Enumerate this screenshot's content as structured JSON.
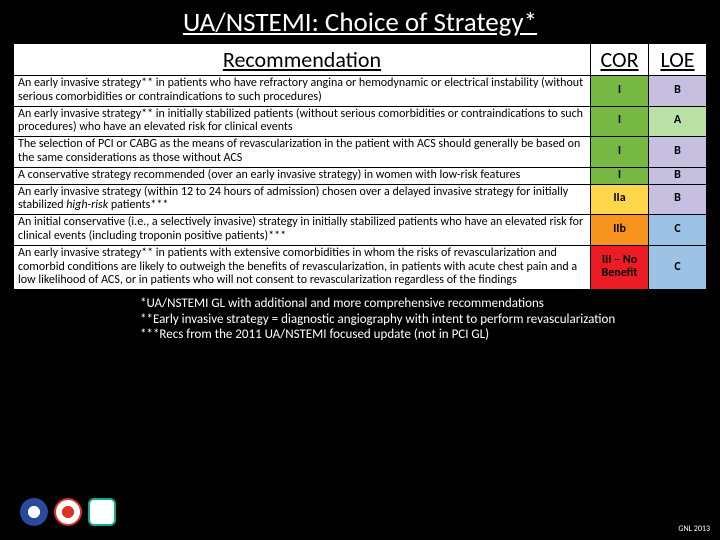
{
  "title": "UA/NSTEMI:  Choice of Strategy*",
  "headers": {
    "rec": "Recommendation",
    "cor": "COR",
    "loe": "LOE"
  },
  "colors": {
    "cor_I": "#77b843",
    "cor_IIa": "#ffd54a",
    "cor_IIb": "#f7941d",
    "cor_IIINo": "#ed1c24",
    "loe_A": "#b9e0a5",
    "loe_B": "#c7bfe0",
    "loe_C": "#9cc3e6"
  },
  "rows": [
    {
      "rec": "An early invasive strategy** in patients who have refractory angina or hemodynamic or electrical instability (without serious comorbidities or contraindications to such procedures)",
      "cor": "I",
      "loe": "B",
      "cor_key": "cor_I",
      "loe_key": "loe_B"
    },
    {
      "rec": "An early invasive strategy** in initially stabilized patients (without serious comorbidities or contraindications to such procedures) who have an elevated risk for clinical events",
      "cor": "I",
      "loe": "A",
      "cor_key": "cor_I",
      "loe_key": "loe_A"
    },
    {
      "rec": "The selection of PCI or CABG as the means of revascularization in the patient with ACS should generally be based on the same considerations as those without ACS",
      "cor": "I",
      "loe": "B",
      "cor_key": "cor_I",
      "loe_key": "loe_B"
    },
    {
      "rec": "A conservative strategy recommended  (over an early invasive strategy) in women with low-risk features",
      "cor": "I",
      "loe": "B",
      "cor_key": "cor_I",
      "loe_key": "loe_B"
    },
    {
      "rec": "An early invasive strategy (within 12 to 24 hours of admission) chosen over a delayed invasive strategy for initially stabilized high-risk patients***",
      "cor": "IIa",
      "loe": "B",
      "cor_key": "cor_IIa",
      "loe_key": "loe_B"
    },
    {
      "rec": "An initial conservative (i.e., a selectively invasive) strategy in initially stabilized patients who have an elevated risk for clinical events (including troponin positive patients)***",
      "cor": "IIb",
      "loe": "C",
      "cor_key": "cor_IIb",
      "loe_key": "loe_C"
    },
    {
      "rec": "An early invasive strategy** in patients with extensive comorbidities in whom the risks of revascularization and comorbid conditions are likely to outweigh the benefits of revascularization, in patients with acute chest pain and a low likelihood of ACS, or in patients who will not consent to revascularization regardless of the findings",
      "cor": "III – No Benefit",
      "loe": "C",
      "cor_key": "cor_IIINo",
      "loe_key": "loe_C"
    }
  ],
  "footnotes": [
    "*UA/NSTEMI GL with additional and more comprehensive recommendations",
    "**Early invasive strategy = diagnostic angiography with intent to perform revascularization",
    "***Recs from the 2011 UA/NSTEMI focused update (not in PCI GL)"
  ],
  "cite": "GNL 2013"
}
